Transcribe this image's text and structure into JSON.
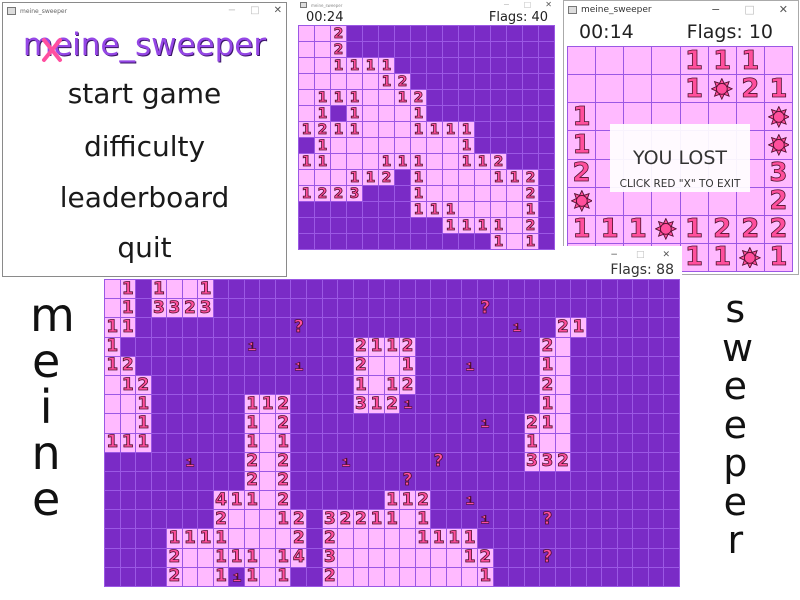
{
  "menu_window": {
    "title": "meine_sweeper",
    "logo": "meine_sweeper",
    "items": [
      "start game",
      "difficulty",
      "leaderboard",
      "quit"
    ]
  },
  "medium_window": {
    "title": "meine_sweeper",
    "timer": "00:24",
    "flags": "Flags: 40",
    "board": [
      "..2#############",
      "..2#############",
      "..1111##########",
      ".....12#########",
      ".111..12########",
      ".1#1...1########",
      "1211...1111#####",
      "#1........1#####",
      "11...111..112###",
      "...112#1....112#",
      "1223###1......2#",
      "#######111....1#",
      "#########1111.2#",
      "############1.1#"
    ]
  },
  "small_window": {
    "title": "meine_sweeper",
    "timer": "00:14",
    "flags": "Flags: 10",
    "board": [
      "....111.",
      "....1*21",
      "111.113*",
      "1*21.13*",
      "23*1.2*3",
      "*22212*2",
      "111*1222",
      "..1111*1"
    ],
    "overlay": {
      "title": "YOU LOST",
      "subtitle": "CLICK RED \"X\" TO EXIT"
    }
  },
  "large_window": {
    "flags": "Flags: 88",
    "board": [
      ".1#1..1##############################",
      ".1#3323#################?########",
      "11##########?#############F##21",
      "1########F######2112########2.",
      "12##########F###2..1###F####1.",
      ".12#############1.12########2.",
      "..1######112####312F########1.",
      "..1######1.2############F##21.",
      "111######1.1###############1..",
      "#####F###2.2###F#####?#####332",
      "#########2.2#######?##########",
      "#######411.2######112##F######",
      "#######2...12#32211.1###F###?#",
      "####1111....2#2.....1111######",
      "####2..111.14#3........12###?#",
      "####2..1F1.1##2.........1#####"
    ]
  },
  "side_text": {
    "left": "meine",
    "right": "sweeper"
  },
  "colors": {
    "hidden_cell": "#7a2bc6",
    "revealed_cell": "#ffbaff",
    "grid_line": "#9b58e4",
    "number": "#ff4f9c",
    "logo": "#9547e6"
  },
  "icons": {
    "flag": "flag-icon",
    "mine": "mine-icon",
    "question": "question-mark",
    "window_icon": "app-icon"
  }
}
